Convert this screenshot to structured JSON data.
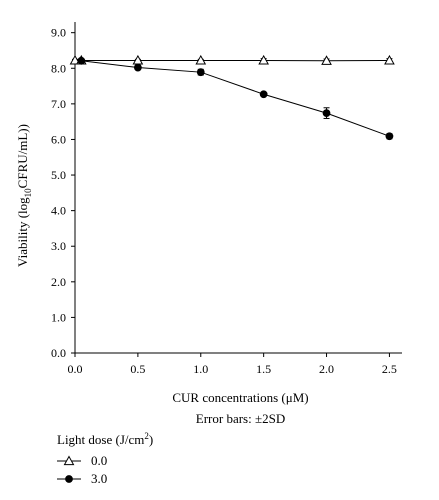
{
  "chart_data": {
    "type": "line",
    "xlabel": "CUR concentrations (μM)",
    "ylabel": "Viability (log10CFRU/mL))",
    "ylabel_parts": {
      "pre": "Viability (log",
      "sub": "10",
      "post": "CFRU/mL))"
    },
    "note": "Error bars: ±2SD",
    "xlim": [
      0.0,
      2.6
    ],
    "ylim": [
      0.0,
      9.3
    ],
    "x_ticks": [
      "0.0",
      "0.5",
      "1.0",
      "1.5",
      "2.0",
      "2.5"
    ],
    "y_ticks": [
      "0.0",
      "1.0",
      "2.0",
      "3.0",
      "4.0",
      "5.0",
      "6.0",
      "7.0",
      "8.0",
      "9.0"
    ],
    "grid": false,
    "legend": {
      "title": "Light dose (J/cm",
      "title_sup": "2",
      "title_close": ")",
      "placement": "bottom-left"
    },
    "series": [
      {
        "name": "0.0",
        "marker": "open-triangle",
        "x": [
          0.0,
          0.05,
          0.5,
          1.0,
          1.5,
          2.0,
          2.5
        ],
        "y": [
          8.22,
          8.22,
          8.22,
          8.22,
          8.22,
          8.21,
          8.22
        ],
        "err": [
          0.03,
          0.03,
          0.03,
          0.03,
          0.05,
          0.05,
          0.05
        ]
      },
      {
        "name": "3.0",
        "marker": "filled-circle",
        "x": [
          0.05,
          0.5,
          1.0,
          1.5,
          2.0,
          2.5
        ],
        "y": [
          8.21,
          8.02,
          7.89,
          7.27,
          6.74,
          6.09
        ],
        "err": [
          0.04,
          0.05,
          0.08,
          0.04,
          0.15,
          0.07
        ]
      }
    ]
  }
}
